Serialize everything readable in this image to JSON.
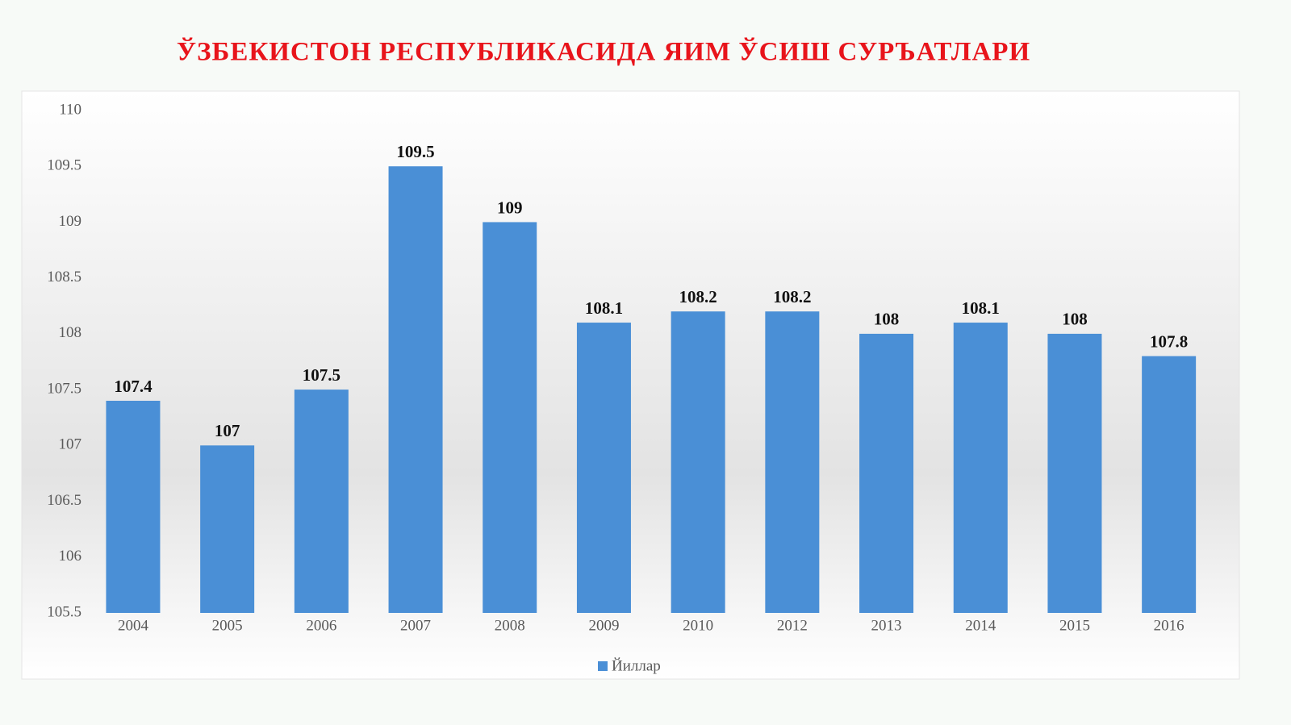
{
  "chart_data": {
    "type": "bar",
    "title": "ЎЗБЕКИСТОН РЕСПУБЛИКАСИДА ЯИМ ЎСИШ СУРЪАТЛАРИ",
    "categories": [
      "2004",
      "2005",
      "2006",
      "2007",
      "2008",
      "2009",
      "2010",
      "2012",
      "2013",
      "2014",
      "2015",
      "2016"
    ],
    "series": [
      {
        "name": "Йиллар",
        "color": "#4a8fd6",
        "values": [
          107.4,
          107,
          107.5,
          109.5,
          109,
          108.1,
          108.2,
          108.2,
          108,
          108.1,
          108,
          107.8
        ]
      }
    ],
    "ylim": [
      105.5,
      110
    ],
    "yticks": [
      105.5,
      106,
      106.5,
      107,
      107.5,
      108,
      108.5,
      109,
      109.5,
      110
    ],
    "grid": false,
    "data_labels": true,
    "legend": "bottom"
  }
}
